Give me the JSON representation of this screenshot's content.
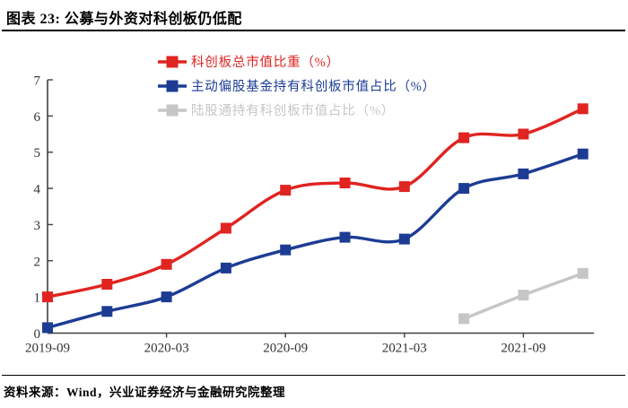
{
  "header": {
    "title": "图表 23:  公募与外资对科创板仍低配"
  },
  "footer": {
    "source": "资料来源：Wind，兴业证券经济与金融研究院整理"
  },
  "chart_data": {
    "type": "line",
    "x": [
      "2019-09",
      "2019-12",
      "2020-03",
      "2020-06",
      "2020-09",
      "2020-12",
      "2021-03",
      "2021-06",
      "2021-09",
      "2021-12"
    ],
    "x_tick_labels": [
      "2019-09",
      "2020-03",
      "2020-09",
      "2021-03",
      "2021-09"
    ],
    "y_ticks": [
      0,
      1,
      2,
      3,
      4,
      5,
      6,
      7
    ],
    "ylim": [
      0,
      7
    ],
    "grid": false,
    "legend_position": "top-center",
    "marker": "square",
    "axis_color": "#404040",
    "tick_label_color": "#333333",
    "series": [
      {
        "id": "star-board-total-cap-share",
        "name": "科创板总市值比重（%）",
        "color": "#e02420",
        "values": [
          1.0,
          1.35,
          1.9,
          2.9,
          3.95,
          4.15,
          4.05,
          5.4,
          5.5,
          6.2
        ]
      },
      {
        "id": "active-equity-fund-holding-share",
        "name": "主动偏股基金持有科创板市值占比（%）",
        "color": "#1c3c94",
        "values": [
          0.15,
          0.6,
          1.0,
          1.8,
          2.3,
          2.65,
          2.6,
          4.0,
          4.4,
          4.95
        ]
      },
      {
        "id": "northbound-holding-share",
        "name": "陆股通持有科创板市值占比（%）",
        "color": "#c6c6c6",
        "values": [
          null,
          null,
          null,
          null,
          null,
          null,
          null,
          0.4,
          1.05,
          1.65
        ]
      }
    ]
  }
}
